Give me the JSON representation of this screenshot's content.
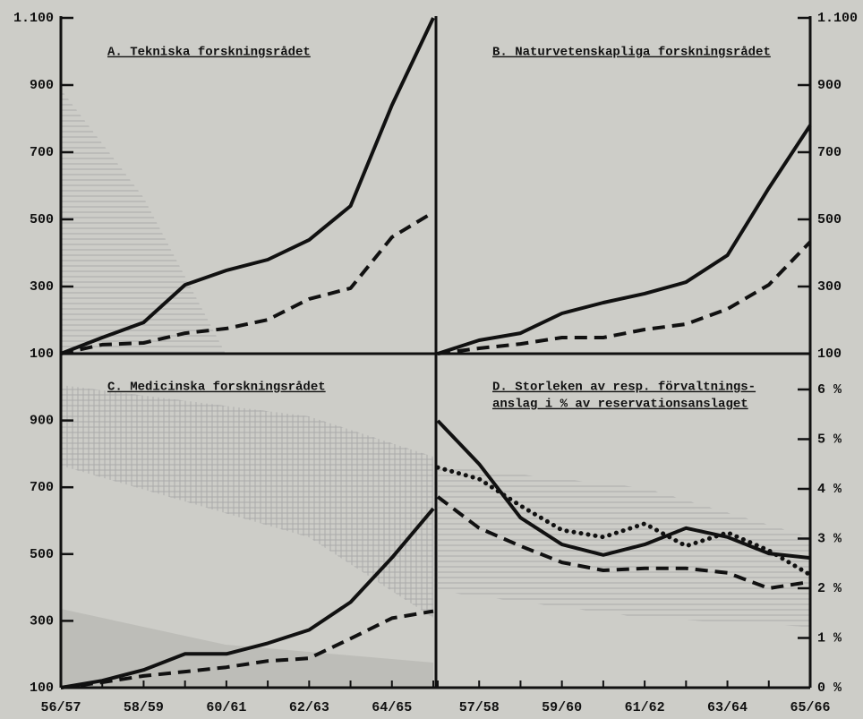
{
  "chart_data": [
    {
      "type": "line",
      "title": "A. Tekniska forskningsrådet",
      "series": [
        {
          "color": "#111111",
          "dash": "solid",
          "values": [
            100,
            148,
            193,
            305,
            348,
            380,
            439,
            540,
            840,
            1100
          ]
        },
        {
          "color": "#111111",
          "dash": "dashed",
          "values": [
            100,
            127,
            132,
            161,
            175,
            201,
            263,
            295,
            447,
            521
          ]
        }
      ],
      "ylim": [
        100,
        1100
      ],
      "yticks": [
        100,
        300,
        500,
        700,
        900,
        {
          "value": 1100,
          "label": "1.100"
        }
      ]
    },
    {
      "type": "line",
      "title": "B. Naturvetenskapliga forskningsrådet",
      "series": [
        {
          "color": "#111111",
          "dash": "solid",
          "values": [
            100,
            140,
            161,
            220,
            252,
            279,
            313,
            393,
            593,
            780
          ]
        },
        {
          "color": "#111111",
          "dash": "dashed",
          "values": [
            100,
            116,
            129,
            148,
            148,
            172,
            188,
            233,
            305,
            433
          ]
        }
      ],
      "ylim": [
        100,
        1100
      ],
      "yticks": [
        100,
        300,
        500,
        700,
        900,
        {
          "value": 1100,
          "label": "1.100"
        }
      ]
    },
    {
      "type": "line",
      "title": "C. Medicinska forskningsrådet",
      "categories": [
        "56/57",
        null,
        "58/59",
        null,
        "60/61",
        null,
        "62/63",
        null,
        "64/65",
        null
      ],
      "series": [
        {
          "color": "#111111",
          "dash": "solid",
          "values": [
            100,
            121,
            153,
            201,
            201,
            233,
            273,
            356,
            489,
            636
          ]
        },
        {
          "color": "#111111",
          "dash": "dashed",
          "values": [
            100,
            116,
            135,
            148,
            161,
            180,
            188,
            247,
            308,
            329
          ]
        }
      ],
      "ylim": [
        100,
        1100
      ],
      "yticks": [
        100,
        300,
        500,
        700,
        900
      ]
    },
    {
      "type": "line",
      "title": [
        "D. Storleken av resp. förvaltnings-",
        "anslag i % av reservationsanslaget"
      ],
      "categories": [
        null,
        "57/58",
        null,
        "59/60",
        null,
        "61/62",
        null,
        "63/64",
        null,
        "65/66"
      ],
      "series": [
        {
          "color": "#111111",
          "dash": "solid",
          "values": [
            5.37,
            4.5,
            3.42,
            2.88,
            2.67,
            2.88,
            3.21,
            3.03,
            2.7,
            2.61
          ]
        },
        {
          "color": "#111111",
          "dash": "dashed",
          "values": [
            3.84,
            3.21,
            2.85,
            2.52,
            2.36,
            2.4,
            2.4,
            2.31,
            2.0,
            2.13
          ]
        },
        {
          "color": "#111111",
          "dash": "dotted",
          "values": [
            4.43,
            4.2,
            3.66,
            3.17,
            3.03,
            3.3,
            2.85,
            3.12,
            2.76,
            2.27
          ]
        }
      ],
      "ylim": [
        0,
        6.72
      ],
      "yticks": [
        {
          "value": 0,
          "label": "0 %"
        },
        {
          "value": 1,
          "label": "1 %"
        },
        {
          "value": 2,
          "label": "2 %"
        },
        {
          "value": 3,
          "label": "3 %"
        },
        {
          "value": 4,
          "label": "4 %"
        },
        {
          "value": 5,
          "label": "5 %"
        },
        {
          "value": 6,
          "label": "6 %"
        }
      ]
    }
  ]
}
